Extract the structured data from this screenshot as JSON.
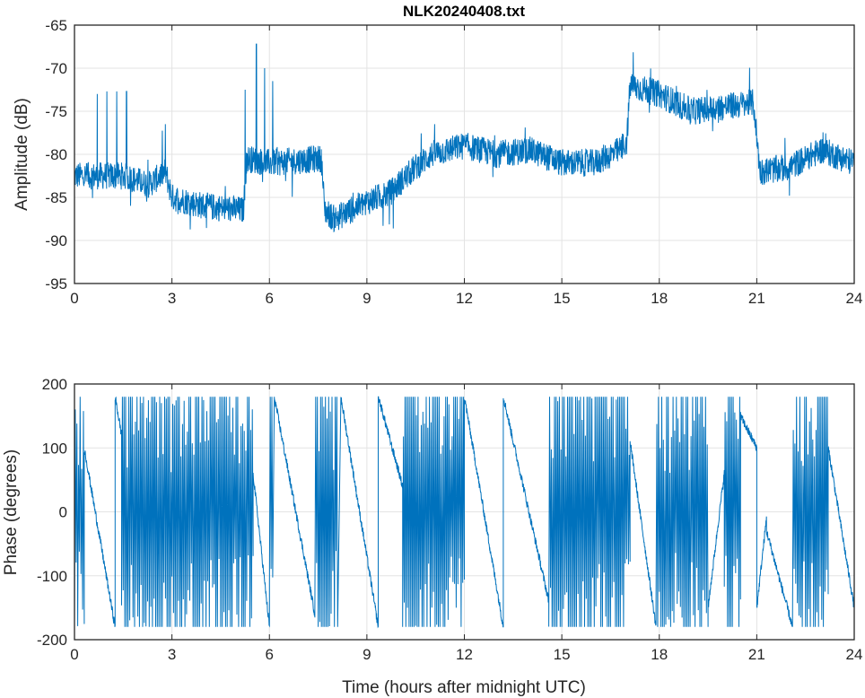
{
  "chart_data": [
    {
      "type": "line",
      "title": "NLK20240408.txt",
      "xlabel": "",
      "ylabel": "Amplitude (dB)",
      "xlim": [
        0,
        24
      ],
      "ylim": [
        -95,
        -65
      ],
      "xticks": [
        0,
        3,
        6,
        9,
        12,
        15,
        18,
        21,
        24
      ],
      "yticks": [
        -65,
        -70,
        -75,
        -80,
        -85,
        -90,
        -95
      ],
      "grid": true,
      "color": "#0072BD",
      "noise_db": 1.6,
      "profile": {
        "x": [
          0,
          1.5,
          2.3,
          2.8,
          3.0,
          4.0,
          5.2,
          5.3,
          6.0,
          7.6,
          7.7,
          8.0,
          9.0,
          9.7,
          10.5,
          11.0,
          12.0,
          13.0,
          14.0,
          15.0,
          16.0,
          16.8,
          17.0,
          17.1,
          18.0,
          19.0,
          20.0,
          20.9,
          21.1,
          22.0,
          23.0,
          24.0
        ],
        "y": [
          -82.5,
          -82.5,
          -83.5,
          -82,
          -85,
          -86,
          -86.5,
          -80.5,
          -81,
          -80.5,
          -86.5,
          -87.5,
          -85.5,
          -84.5,
          -81.5,
          -80,
          -79,
          -80,
          -79.5,
          -81,
          -81,
          -79.5,
          -78.5,
          -72,
          -73,
          -75,
          -74.5,
          -74,
          -82,
          -81.5,
          -79.5,
          -81
        ]
      },
      "spikes": {
        "x": [
          0.7,
          1.0,
          1.3,
          1.6,
          2.8,
          5.25,
          5.6,
          5.85,
          6.1
        ],
        "y": [
          -73,
          -72.7,
          -72.7,
          -72.7,
          -76.5,
          -72.5,
          -67.2,
          -70,
          -71.5
        ]
      }
    },
    {
      "type": "line",
      "title": "",
      "xlabel": "Time (hours after midnight UTC)",
      "ylabel": "Phase (degrees)",
      "xlim": [
        0,
        24
      ],
      "ylim": [
        -200,
        200
      ],
      "xticks": [
        0,
        3,
        6,
        9,
        12,
        15,
        18,
        21,
        24
      ],
      "yticks": [
        200,
        100,
        0,
        -100,
        -200
      ],
      "grid": true,
      "color": "#0072BD",
      "wrap_range": [
        -180,
        180
      ],
      "segments": [
        {
          "t": [
            0.0,
            0.3
          ],
          "mode": "rapid"
        },
        {
          "t": [
            0.3,
            1.25
          ],
          "mode": "drift",
          "from": 100,
          "to": -180
        },
        {
          "t": [
            1.25,
            1.45
          ],
          "mode": "drift",
          "from": 180,
          "to": 120
        },
        {
          "t": [
            1.45,
            5.5
          ],
          "mode": "rapid"
        },
        {
          "t": [
            5.5,
            6.0
          ],
          "mode": "drift",
          "from": 60,
          "to": -180
        },
        {
          "t": [
            6.0,
            6.1
          ],
          "mode": "rapid"
        },
        {
          "t": [
            6.15,
            7.4
          ],
          "mode": "drift",
          "from": 180,
          "to": -160
        },
        {
          "t": [
            7.4,
            8.1
          ],
          "mode": "rapid"
        },
        {
          "t": [
            8.2,
            9.35
          ],
          "mode": "drift",
          "from": 180,
          "to": -180
        },
        {
          "t": [
            9.35,
            10.1
          ],
          "mode": "drift",
          "from": 180,
          "to": 40
        },
        {
          "t": [
            10.1,
            12.0
          ],
          "mode": "rapid"
        },
        {
          "t": [
            12.0,
            13.2
          ],
          "mode": "drift",
          "from": 180,
          "to": -180
        },
        {
          "t": [
            13.2,
            14.6
          ],
          "mode": "drift",
          "from": 180,
          "to": -140
        },
        {
          "t": [
            14.6,
            17.1
          ],
          "mode": "rapid"
        },
        {
          "t": [
            17.1,
            17.9
          ],
          "mode": "drift",
          "from": 110,
          "to": -180
        },
        {
          "t": [
            17.9,
            19.5
          ],
          "mode": "rapid"
        },
        {
          "t": [
            19.5,
            20.0
          ],
          "mode": "drift",
          "from": -150,
          "to": 60
        },
        {
          "t": [
            20.0,
            20.5
          ],
          "mode": "rapid"
        },
        {
          "t": [
            20.5,
            21.0
          ],
          "mode": "drift",
          "from": 150,
          "to": 100
        },
        {
          "t": [
            21.0,
            21.3
          ],
          "mode": "drift",
          "from": -150,
          "to": -10
        },
        {
          "t": [
            21.3,
            22.1
          ],
          "mode": "drift",
          "from": -30,
          "to": -180
        },
        {
          "t": [
            22.1,
            23.2
          ],
          "mode": "rapid"
        },
        {
          "t": [
            23.2,
            24.0
          ],
          "mode": "drift",
          "from": 100,
          "to": -150
        }
      ]
    }
  ]
}
